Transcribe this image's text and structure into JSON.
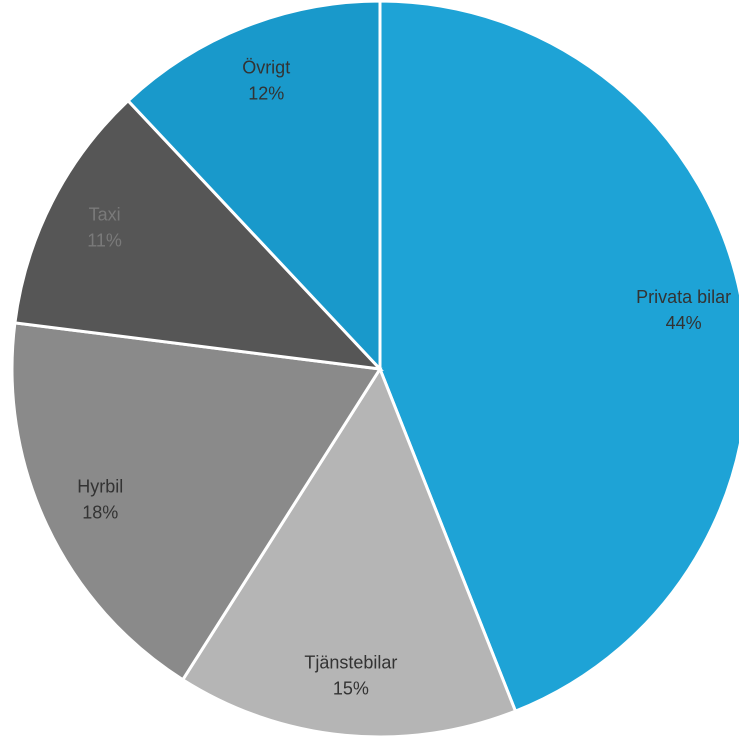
{
  "chart_data": {
    "type": "pie",
    "categories": [
      "Privata bilar",
      "Tjänstebilar",
      "Hyrbil",
      "Taxi",
      "Övrigt"
    ],
    "values": [
      44,
      15,
      18,
      11,
      12
    ],
    "value_labels": [
      "44%",
      "15%",
      "18%",
      "11%",
      "12%"
    ],
    "colors": [
      "#1ea3d6",
      "#b5b5b5",
      "#8a8a8a",
      "#565656",
      "#1999cb"
    ],
    "label_colors": [
      "#333333",
      "#333333",
      "#333333",
      "#7a7a7a",
      "#333333"
    ]
  }
}
